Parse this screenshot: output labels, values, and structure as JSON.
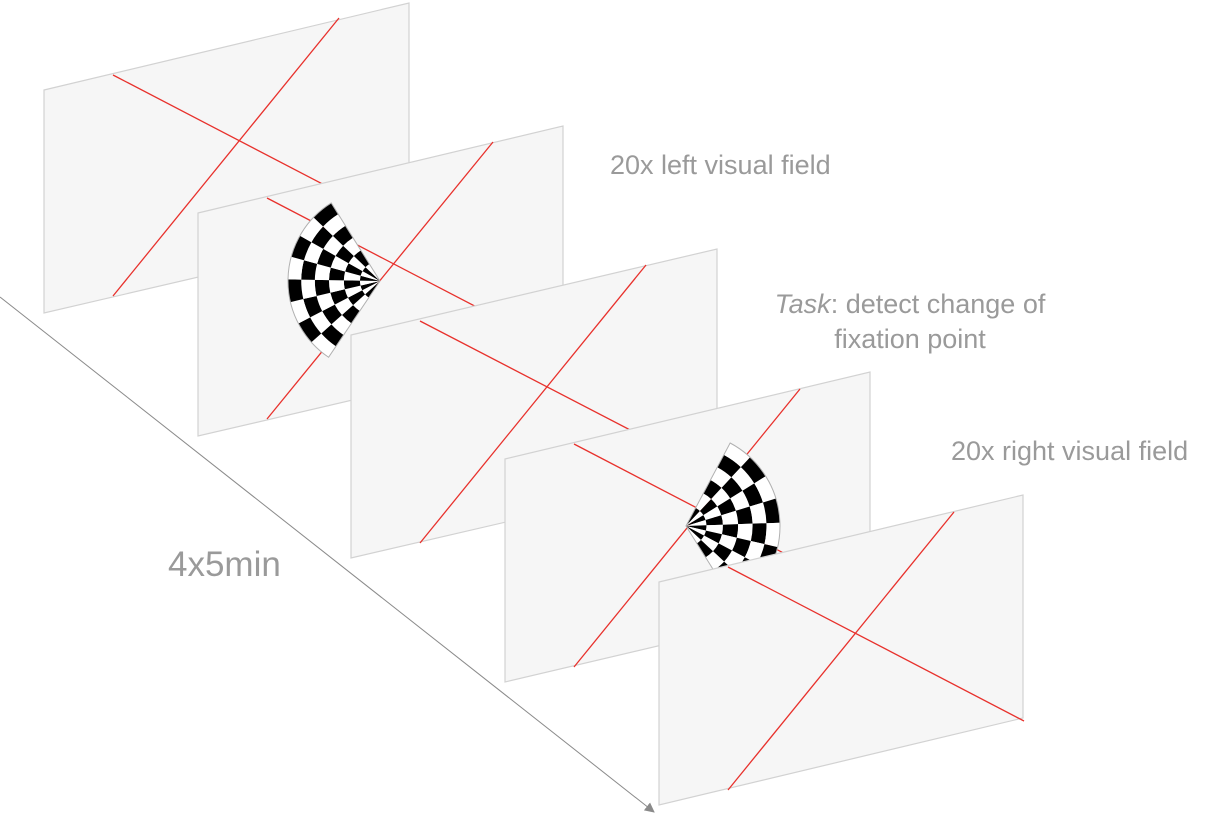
{
  "labels": {
    "left_visual_field": "20x left visual field",
    "task_word": "Task",
    "task_rest": ": detect change of",
    "task_line2": "fixation point",
    "right_visual_field": "20x right visual field",
    "duration": "4x5min"
  },
  "colors": {
    "screen_fill": "#f6f6f6",
    "screen_border": "#d2d2d2",
    "fixation_cross": "#e8312c",
    "label_text": "#9a9a9a",
    "checker_dark": "#000000",
    "checker_light": "#ffffff"
  },
  "screens": [
    {
      "stimulus": "none"
    },
    {
      "stimulus": "left-hemifield-checkerboard-wedge"
    },
    {
      "stimulus": "none"
    },
    {
      "stimulus": "right-hemifield-checkerboard-wedge"
    },
    {
      "stimulus": "none"
    }
  ]
}
